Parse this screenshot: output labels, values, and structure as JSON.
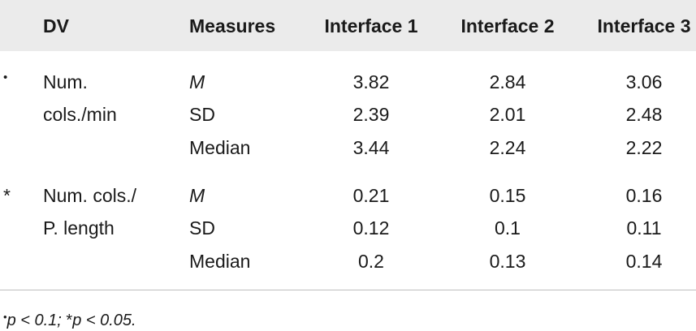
{
  "headers": {
    "dv": "DV",
    "measures": "Measures",
    "interface1": "Interface 1",
    "interface2": "Interface 2",
    "interface3": "Interface 3"
  },
  "groups": [
    {
      "marker": "•",
      "dv_line1": "Num.",
      "dv_line2": "cols./min",
      "rows": [
        {
          "measure": "M",
          "i1": "3.82",
          "i2": "2.84",
          "i3": "3.06"
        },
        {
          "measure": "SD",
          "i1": "2.39",
          "i2": "2.01",
          "i3": "2.48"
        },
        {
          "measure": "Median",
          "i1": "3.44",
          "i2": "2.24",
          "i3": "2.22"
        }
      ]
    },
    {
      "marker": "*",
      "dv_line1": "Num. cols./",
      "dv_line2": "P. length",
      "rows": [
        {
          "measure": "M",
          "i1": "0.21",
          "i2": "0.15",
          "i3": "0.16"
        },
        {
          "measure": "SD",
          "i1": "0.12",
          "i2": "0.1",
          "i3": "0.11"
        },
        {
          "measure": "Median",
          "i1": "0.2",
          "i2": "0.13",
          "i3": "0.14"
        }
      ]
    }
  ],
  "footnote": {
    "sym1": "•",
    "text1": "p < 0.1; ",
    "sym2": "*",
    "text2": "p < 0.05."
  }
}
